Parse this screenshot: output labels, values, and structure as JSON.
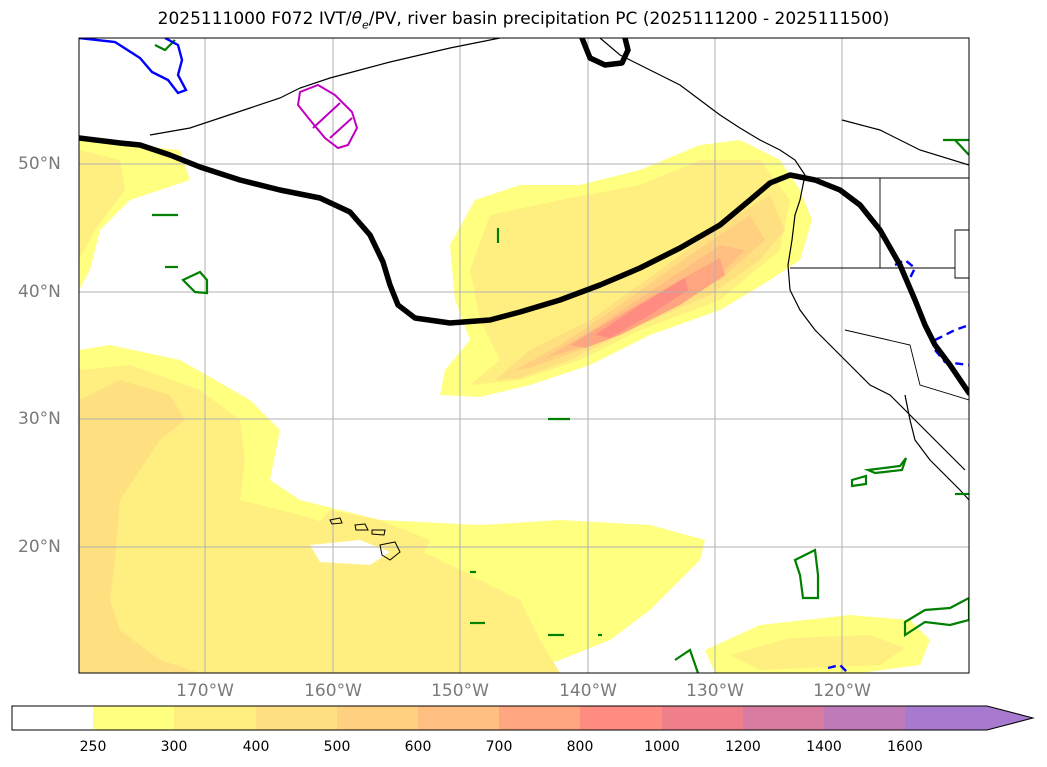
{
  "title_prefix": "2025111000 F072 IVT/",
  "title_theta": "θ",
  "title_theta_sub": "e",
  "title_suffix": "/PV, river basin precipitation PC (2025111200 - 2025111500)",
  "map": {
    "lat_labels": [
      "50°N",
      "40°N",
      "30°N",
      "20°N"
    ],
    "lon_labels": [
      "170°W",
      "160°W",
      "150°W",
      "140°W",
      "130°W",
      "120°W"
    ],
    "grid": true,
    "fill_colors": {
      "250": "#ffff80",
      "300": "#ffef80",
      "400": "#ffe080",
      "500": "#ffd080",
      "600": "#ffbf80",
      "700": "#ffa680",
      "800": "#ff8c80",
      "1000": "#ef7f8a"
    },
    "contour_colors": {
      "pv_line": "#000000",
      "green": "#008000",
      "blue": "#0000ff",
      "magenta": "#c000c0"
    }
  },
  "colorbar": {
    "ticks": [
      "250",
      "300",
      "400",
      "500",
      "600",
      "700",
      "800",
      "1000",
      "1200",
      "1400",
      "1600"
    ],
    "colors": [
      "#ffffff",
      "#ffff80",
      "#ffef80",
      "#ffe080",
      "#ffd080",
      "#ffbf80",
      "#ffa680",
      "#ff8c80",
      "#ef7f8a",
      "#d77ca0",
      "#bf7ab8",
      "#a77acf"
    ]
  }
}
